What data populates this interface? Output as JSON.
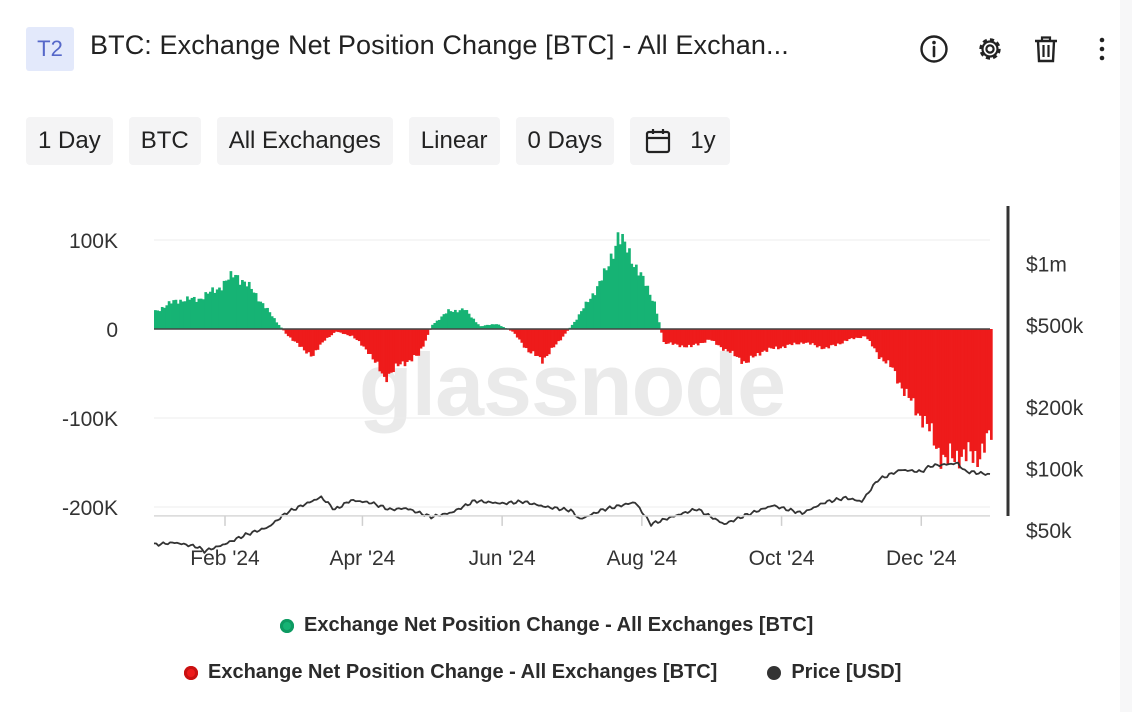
{
  "header": {
    "tag": "T2",
    "title": "BTC: Exchange Net Position Change [BTC] - All Exchan..."
  },
  "toolbar": {
    "resolution": "1 Day",
    "asset": "BTC",
    "exchange": "All Exchanges",
    "scale": "Linear",
    "offset": "0 Days",
    "range": "1y"
  },
  "icons": [
    "info-icon",
    "gear-icon",
    "trash-icon",
    "more-icon"
  ],
  "watermark": "glassnode",
  "colors": {
    "positive": "#16b374",
    "negative": "#ee1b1b",
    "price": "#333333",
    "tag_bg": "#e3e9fb",
    "tag_text": "#5668c9"
  },
  "legend": {
    "item1": "Exchange Net Position Change - All Exchanges [BTC]",
    "item2": "Exchange Net Position Change - All Exchanges [BTC]",
    "item3": "Price [USD]"
  },
  "chart_data": {
    "type": "bar",
    "title": "BTC: Exchange Net Position Change [BTC] - All Exchanges",
    "x_range": [
      "2024-01-01",
      "2024-12-31"
    ],
    "x_ticks": [
      "Feb '24",
      "Apr '24",
      "Jun '24",
      "Aug '24",
      "Oct '24",
      "Dec '24"
    ],
    "y_left": {
      "ticks": [
        100000,
        0,
        -100000,
        -200000
      ],
      "tick_labels": [
        "100K",
        "0",
        "-100K",
        "-200K"
      ],
      "lim": [
        -210000,
        110000
      ]
    },
    "y_right": {
      "scale": "log",
      "ticks": [
        1000000,
        500000,
        200000,
        100000,
        50000
      ],
      "tick_labels": [
        "$1m",
        "$500k",
        "$200k",
        "$100k",
        "$50k"
      ]
    },
    "series": [
      {
        "name": "Exchange Net Position Change - All Exchanges [BTC]",
        "axis": "left",
        "color_positive": "#16b374",
        "color_negative": "#ee1b1b",
        "points": [
          [
            "2024-01-01",
            20000
          ],
          [
            "2024-01-10",
            32000
          ],
          [
            "2024-01-20",
            34000
          ],
          [
            "2024-01-28",
            45000
          ],
          [
            "2024-02-05",
            62000
          ],
          [
            "2024-02-13",
            42000
          ],
          [
            "2024-02-20",
            18000
          ],
          [
            "2024-02-27",
            -5000
          ],
          [
            "2024-03-05",
            -22000
          ],
          [
            "2024-03-10",
            -30000
          ],
          [
            "2024-03-15",
            -12000
          ],
          [
            "2024-03-20",
            -3000
          ],
          [
            "2024-03-27",
            -8000
          ],
          [
            "2024-04-03",
            -25000
          ],
          [
            "2024-04-10",
            -55000
          ],
          [
            "2024-04-17",
            -40000
          ],
          [
            "2024-04-25",
            -30000
          ],
          [
            "2024-05-01",
            5000
          ],
          [
            "2024-05-08",
            20000
          ],
          [
            "2024-05-15",
            22000
          ],
          [
            "2024-05-22",
            3000
          ],
          [
            "2024-05-29",
            6000
          ],
          [
            "2024-06-05",
            -3000
          ],
          [
            "2024-06-12",
            -25000
          ],
          [
            "2024-06-18",
            -35000
          ],
          [
            "2024-06-25",
            -15000
          ],
          [
            "2024-07-02",
            8000
          ],
          [
            "2024-07-09",
            35000
          ],
          [
            "2024-07-16",
            65000
          ],
          [
            "2024-07-21",
            105000
          ],
          [
            "2024-07-26",
            85000
          ],
          [
            "2024-08-01",
            55000
          ],
          [
            "2024-08-06",
            30000
          ],
          [
            "2024-08-10",
            -15000
          ],
          [
            "2024-08-15",
            -18000
          ],
          [
            "2024-08-22",
            -20000
          ],
          [
            "2024-08-30",
            -12000
          ],
          [
            "2024-09-07",
            -25000
          ],
          [
            "2024-09-15",
            -38000
          ],
          [
            "2024-09-22",
            -25000
          ],
          [
            "2024-10-01",
            -20000
          ],
          [
            "2024-10-10",
            -15000
          ],
          [
            "2024-10-20",
            -22000
          ],
          [
            "2024-10-30",
            -12000
          ],
          [
            "2024-11-06",
            -8000
          ],
          [
            "2024-11-12",
            -30000
          ],
          [
            "2024-11-18",
            -45000
          ],
          [
            "2024-11-24",
            -75000
          ],
          [
            "2024-12-01",
            -100000
          ],
          [
            "2024-12-06",
            -125000
          ],
          [
            "2024-12-11",
            -150000
          ],
          [
            "2024-12-17",
            -140000
          ],
          [
            "2024-12-24",
            -145000
          ],
          [
            "2024-12-31",
            -120000
          ]
        ]
      },
      {
        "name": "Price [USD]",
        "axis": "right",
        "color": "#333333",
        "points": [
          [
            "2024-01-01",
            42500
          ],
          [
            "2024-01-10",
            43500
          ],
          [
            "2024-01-20",
            41500
          ],
          [
            "2024-01-23",
            39500
          ],
          [
            "2024-02-01",
            42800
          ],
          [
            "2024-02-10",
            47500
          ],
          [
            "2024-02-20",
            51800
          ],
          [
            "2024-02-28",
            61000
          ],
          [
            "2024-03-07",
            67000
          ],
          [
            "2024-03-14",
            72500
          ],
          [
            "2024-03-20",
            63000
          ],
          [
            "2024-03-27",
            70000
          ],
          [
            "2024-04-05",
            68000
          ],
          [
            "2024-04-13",
            63000
          ],
          [
            "2024-04-20",
            64000
          ],
          [
            "2024-05-01",
            58000
          ],
          [
            "2024-05-10",
            61000
          ],
          [
            "2024-05-20",
            69500
          ],
          [
            "2024-06-01",
            67500
          ],
          [
            "2024-06-10",
            69000
          ],
          [
            "2024-06-20",
            65000
          ],
          [
            "2024-07-01",
            62500
          ],
          [
            "2024-07-05",
            56500
          ],
          [
            "2024-07-15",
            63000
          ],
          [
            "2024-07-29",
            68500
          ],
          [
            "2024-08-05",
            53500
          ],
          [
            "2024-08-15",
            58500
          ],
          [
            "2024-08-25",
            63500
          ],
          [
            "2024-09-06",
            53500
          ],
          [
            "2024-09-15",
            59000
          ],
          [
            "2024-09-27",
            66000
          ],
          [
            "2024-10-10",
            60500
          ],
          [
            "2024-10-20",
            68500
          ],
          [
            "2024-10-29",
            72000
          ],
          [
            "2024-11-05",
            69000
          ],
          [
            "2024-11-12",
            88000
          ],
          [
            "2024-11-22",
            98500
          ],
          [
            "2024-12-01",
            96500
          ],
          [
            "2024-12-05",
            103000
          ],
          [
            "2024-12-17",
            106000
          ],
          [
            "2024-12-20",
            97000
          ],
          [
            "2024-12-31",
            93500
          ]
        ]
      }
    ]
  }
}
